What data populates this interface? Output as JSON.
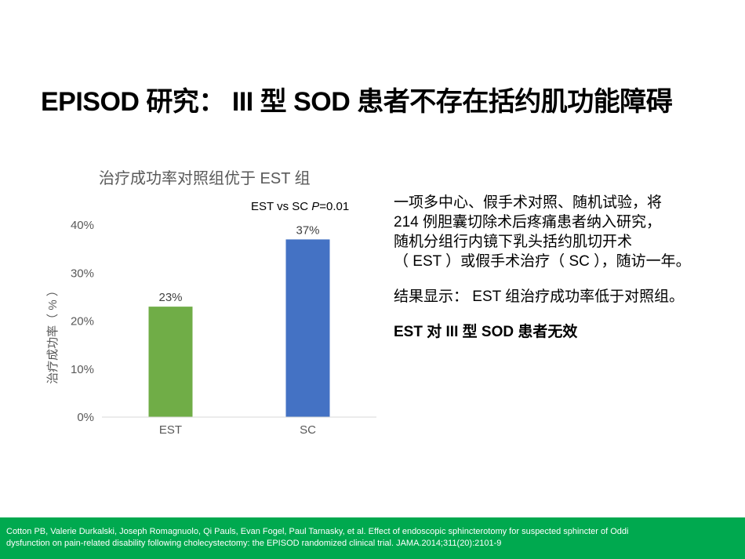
{
  "slide": {
    "title": "EPISOD 研究： III 型 SOD 患者不存在括约肌功能障碍"
  },
  "chart_data": {
    "type": "bar",
    "title": "治疗成功率对照组优于 EST 组",
    "ylabel": "治疗成功率（ % ）",
    "xlabel": "",
    "categories": [
      "EST",
      "SC"
    ],
    "values": [
      23,
      37
    ],
    "value_labels": [
      "23%",
      "37%"
    ],
    "colors": [
      "#70ad47",
      "#4472c4"
    ],
    "ylim": [
      0,
      40
    ],
    "yticks": [
      0,
      10,
      20,
      30,
      40
    ],
    "ytick_labels": [
      "0%",
      "10%",
      "20%",
      "30%",
      "40%"
    ],
    "grid": false,
    "legend": "none",
    "annotation": {
      "prefix": "EST vs SC ",
      "p_symbol": "P",
      "suffix": "=0.01"
    }
  },
  "body": {
    "para1": "一项多中心、假手术对照、随机试验，将\n214 例胆囊切除术后疼痛患者纳入研究，\n随机分组行内镜下乳头括约肌切开术\n（ EST ）或假手术治疗（ SC ），随访一年。",
    "para2": "结果显示： EST 组治疗成功率低于对照组。",
    "conclusion": "EST 对 III 型 SOD 患者无效"
  },
  "footer": {
    "line1": "Cotton PB, Valerie Durkalski, Joseph Romagnuolo, Qi Pauls, Evan Fogel, Paul Tarnasky, et al. Effect of endoscopic sphincterotomy for suspected sphincter of Oddi",
    "line2": "dysfunction on pain-related disability following cholecystectomy: the EPISOD randomized clinical trial. JAMA.2014;311(20):2101-9",
    "background": "#00a94f"
  }
}
